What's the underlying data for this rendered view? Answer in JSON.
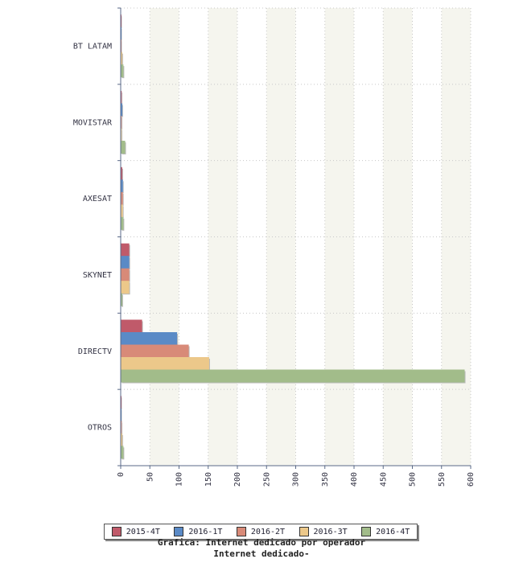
{
  "chart_data": {
    "type": "bar",
    "orientation": "horizontal",
    "categories": [
      "BT LATAM",
      "MOVISTAR",
      "AXESAT",
      "SKYNET",
      "DIRECTV",
      "OTROS"
    ],
    "series": [
      {
        "name": "2015-4T",
        "color": "#c05a6a",
        "values": [
          0,
          1,
          2,
          14,
          36,
          0
        ]
      },
      {
        "name": "2016-1T",
        "color": "#5a8ac6",
        "values": [
          0,
          2,
          3,
          14,
          96,
          0
        ]
      },
      {
        "name": "2016-2T",
        "color": "#d88a78",
        "values": [
          0,
          1,
          3,
          14,
          116,
          1
        ]
      },
      {
        "name": "2016-3T",
        "color": "#ecc88a",
        "values": [
          2,
          1,
          3,
          14,
          151,
          2
        ]
      },
      {
        "name": "2016-4T",
        "color": "#a2bc8a",
        "values": [
          4,
          7,
          4,
          2,
          589,
          4
        ]
      }
    ],
    "xticks": [
      "0",
      "50",
      "100",
      "150",
      "200",
      "250",
      "300",
      "350",
      "400",
      "450",
      "500",
      "550",
      "600"
    ],
    "xlim": [
      0,
      600
    ],
    "grid": true,
    "legend_position": "bottom"
  },
  "caption": {
    "line1": "Grafica: Internet dedicado por operador",
    "line2": "Internet dedicado-"
  }
}
